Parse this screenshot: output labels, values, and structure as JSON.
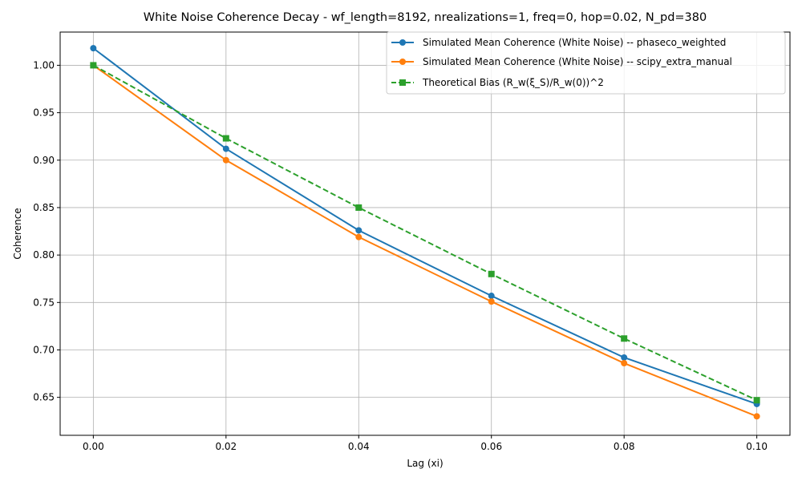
{
  "chart_data": {
    "type": "line",
    "title": "White Noise Coherence Decay - wf_length=8192, nrealizations=1, freq=0, hop=0.02, N_pd=380",
    "xlabel": "Lag (xi)",
    "ylabel": "Coherence",
    "xlim": [
      -0.005,
      0.105
    ],
    "ylim": [
      0.61,
      1.035
    ],
    "x_ticks": [
      0.0,
      0.02,
      0.04,
      0.06,
      0.08,
      0.1
    ],
    "x_tick_labels": [
      "0.00",
      "0.02",
      "0.04",
      "0.06",
      "0.08",
      "0.10"
    ],
    "y_ticks": [
      0.65,
      0.7,
      0.75,
      0.8,
      0.85,
      0.9,
      0.95,
      1.0
    ],
    "y_tick_labels": [
      "0.65",
      "0.70",
      "0.75",
      "0.80",
      "0.85",
      "0.90",
      "0.95",
      "1.00"
    ],
    "grid": true,
    "legend_position": "top-right",
    "x": [
      0.0,
      0.02,
      0.04,
      0.06,
      0.08,
      0.1
    ],
    "series": [
      {
        "name": "Simulated Mean Coherence (White Noise) -- phaseco_weighted",
        "values": [
          1.018,
          0.912,
          0.826,
          0.757,
          0.692,
          0.643
        ],
        "color": "#1f77b4",
        "marker": "circle",
        "dash": "solid"
      },
      {
        "name": "Simulated Mean Coherence (White Noise) -- scipy_extra_manual",
        "values": [
          1.0,
          0.9,
          0.819,
          0.751,
          0.686,
          0.63
        ],
        "color": "#ff7f0e",
        "marker": "circle",
        "dash": "solid"
      },
      {
        "name": "Theoretical Bias (R_w(ξ_S)/R_w(0))^2",
        "values": [
          1.0,
          0.923,
          0.85,
          0.78,
          0.712,
          0.647
        ],
        "color": "#2ca02c",
        "marker": "square",
        "dash": "dashed"
      }
    ]
  }
}
